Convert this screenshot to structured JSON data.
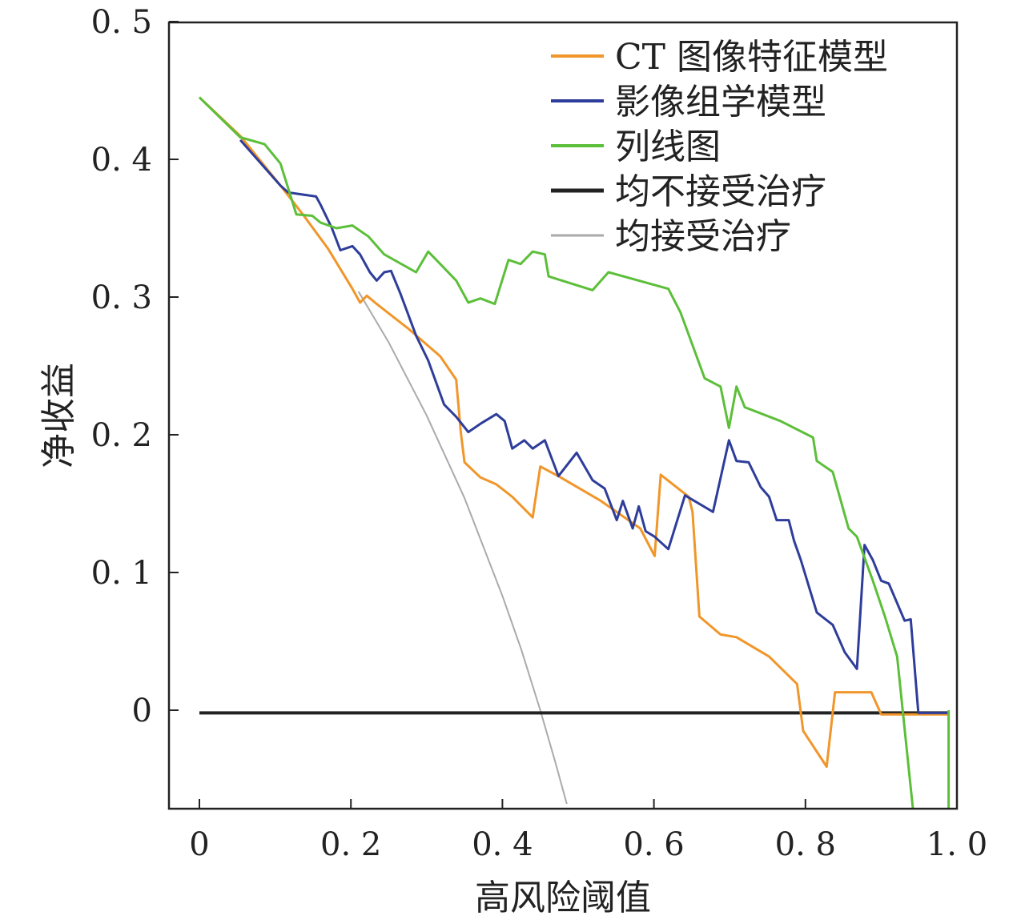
{
  "chart_data": {
    "type": "line",
    "title": "",
    "xlabel": "高风险阈值",
    "ylabel": "净收益",
    "xlim": [
      -0.04,
      1.0
    ],
    "ylim": [
      -0.0715,
      0.5
    ],
    "xticks": [
      0,
      0.2,
      0.4,
      0.6,
      0.8,
      1.0
    ],
    "xtick_labels": [
      "0",
      "0.2",
      "0.4",
      "0.6",
      "0.8",
      "1.0"
    ],
    "yticks": [
      0,
      0.1,
      0.2,
      0.3,
      0.4,
      0.5
    ],
    "ytick_labels": [
      "0",
      "0.1",
      "0.2",
      "0.3",
      "0.4",
      "0.5"
    ],
    "grid": false,
    "legend_position": "top-right",
    "series": [
      {
        "name": "CT 图像特征模型",
        "color": "#f0962a",
        "width": 3,
        "points": [
          [
            0,
            0.445
          ],
          [
            0.054,
            0.417
          ],
          [
            0.107,
            0.381
          ],
          [
            0.138,
            0.359
          ],
          [
            0.17,
            0.335
          ],
          [
            0.202,
            0.306
          ],
          [
            0.212,
            0.296
          ],
          [
            0.221,
            0.301
          ],
          [
            0.234,
            0.295
          ],
          [
            0.276,
            0.277
          ],
          [
            0.318,
            0.257
          ],
          [
            0.339,
            0.24
          ],
          [
            0.345,
            0.202
          ],
          [
            0.35,
            0.18
          ],
          [
            0.371,
            0.169
          ],
          [
            0.392,
            0.164
          ],
          [
            0.413,
            0.155
          ],
          [
            0.44,
            0.14
          ],
          [
            0.45,
            0.177
          ],
          [
            0.477,
            0.169
          ],
          [
            0.53,
            0.152
          ],
          [
            0.582,
            0.132
          ],
          [
            0.601,
            0.112
          ],
          [
            0.609,
            0.171
          ],
          [
            0.646,
            0.155
          ],
          [
            0.651,
            0.144
          ],
          [
            0.66,
            0.068
          ],
          [
            0.688,
            0.055
          ],
          [
            0.709,
            0.053
          ],
          [
            0.752,
            0.039
          ],
          [
            0.789,
            0.019
          ],
          [
            0.797,
            -0.015
          ],
          [
            0.828,
            -0.041
          ],
          [
            0.839,
            0.013
          ],
          [
            0.887,
            0.013
          ],
          [
            0.9,
            -0.003
          ],
          [
            0.989,
            -0.003
          ]
        ]
      },
      {
        "name": "影像组学模型",
        "color": "#2e3d9a",
        "width": 3,
        "points": [
          [
            0.054,
            0.414
          ],
          [
            0.107,
            0.381
          ],
          [
            0.117,
            0.376
          ],
          [
            0.154,
            0.373
          ],
          [
            0.16,
            0.367
          ],
          [
            0.175,
            0.35
          ],
          [
            0.186,
            0.334
          ],
          [
            0.202,
            0.337
          ],
          [
            0.212,
            0.331
          ],
          [
            0.225,
            0.318
          ],
          [
            0.234,
            0.312
          ],
          [
            0.244,
            0.318
          ],
          [
            0.253,
            0.319
          ],
          [
            0.265,
            0.303
          ],
          [
            0.286,
            0.272
          ],
          [
            0.302,
            0.254
          ],
          [
            0.323,
            0.222
          ],
          [
            0.339,
            0.213
          ],
          [
            0.355,
            0.202
          ],
          [
            0.371,
            0.208
          ],
          [
            0.392,
            0.215
          ],
          [
            0.403,
            0.21
          ],
          [
            0.413,
            0.19
          ],
          [
            0.429,
            0.196
          ],
          [
            0.44,
            0.19
          ],
          [
            0.456,
            0.196
          ],
          [
            0.474,
            0.17
          ],
          [
            0.498,
            0.187
          ],
          [
            0.519,
            0.167
          ],
          [
            0.535,
            0.161
          ],
          [
            0.551,
            0.138
          ],
          [
            0.559,
            0.152
          ],
          [
            0.572,
            0.132
          ],
          [
            0.58,
            0.148
          ],
          [
            0.589,
            0.13
          ],
          [
            0.601,
            0.126
          ],
          [
            0.619,
            0.117
          ],
          [
            0.641,
            0.156
          ],
          [
            0.678,
            0.144
          ],
          [
            0.699,
            0.196
          ],
          [
            0.709,
            0.181
          ],
          [
            0.725,
            0.18
          ],
          [
            0.741,
            0.162
          ],
          [
            0.752,
            0.155
          ],
          [
            0.762,
            0.138
          ],
          [
            0.778,
            0.138
          ],
          [
            0.785,
            0.123
          ],
          [
            0.794,
            0.109
          ],
          [
            0.815,
            0.071
          ],
          [
            0.836,
            0.062
          ],
          [
            0.852,
            0.042
          ],
          [
            0.868,
            0.03
          ],
          [
            0.878,
            0.12
          ],
          [
            0.889,
            0.109
          ],
          [
            0.9,
            0.094
          ],
          [
            0.91,
            0.092
          ],
          [
            0.931,
            0.065
          ],
          [
            0.939,
            0.066
          ],
          [
            0.949,
            -0.002
          ],
          [
            0.989,
            -0.002
          ]
        ]
      },
      {
        "name": "列线图",
        "color": "#5cbf3a",
        "width": 3,
        "points": [
          [
            0,
            0.445
          ],
          [
            0.054,
            0.416
          ],
          [
            0.086,
            0.411
          ],
          [
            0.107,
            0.397
          ],
          [
            0.128,
            0.36
          ],
          [
            0.149,
            0.359
          ],
          [
            0.16,
            0.354
          ],
          [
            0.181,
            0.35
          ],
          [
            0.202,
            0.352
          ],
          [
            0.223,
            0.344
          ],
          [
            0.244,
            0.331
          ],
          [
            0.286,
            0.318
          ],
          [
            0.302,
            0.333
          ],
          [
            0.318,
            0.324
          ],
          [
            0.339,
            0.312
          ],
          [
            0.355,
            0.296
          ],
          [
            0.371,
            0.299
          ],
          [
            0.39,
            0.295
          ],
          [
            0.408,
            0.327
          ],
          [
            0.424,
            0.324
          ],
          [
            0.44,
            0.333
          ],
          [
            0.456,
            0.331
          ],
          [
            0.461,
            0.315
          ],
          [
            0.519,
            0.305
          ],
          [
            0.54,
            0.318
          ],
          [
            0.619,
            0.306
          ],
          [
            0.635,
            0.289
          ],
          [
            0.667,
            0.241
          ],
          [
            0.688,
            0.235
          ],
          [
            0.699,
            0.205
          ],
          [
            0.709,
            0.235
          ],
          [
            0.72,
            0.22
          ],
          [
            0.767,
            0.21
          ],
          [
            0.81,
            0.198
          ],
          [
            0.815,
            0.181
          ],
          [
            0.836,
            0.173
          ],
          [
            0.857,
            0.132
          ],
          [
            0.868,
            0.126
          ],
          [
            0.889,
            0.094
          ],
          [
            0.905,
            0.068
          ],
          [
            0.921,
            0.039
          ],
          [
            0.942,
            -0.072
          ],
          null,
          [
            0.989,
            0
          ],
          [
            0.989,
            -0.072
          ]
        ]
      },
      {
        "name": "均不接受治疗",
        "color": "#222222",
        "width": 4,
        "points": [
          [
            0,
            -0.002
          ],
          [
            0.989,
            -0.002
          ]
        ]
      },
      {
        "name": "均接受治疗",
        "color": "#aaaaaa",
        "width": 2,
        "points": [
          [
            0.21,
            0.304
          ],
          [
            0.25,
            0.267
          ],
          [
            0.3,
            0.214
          ],
          [
            0.35,
            0.154
          ],
          [
            0.4,
            0.083
          ],
          [
            0.425,
            0.044
          ],
          [
            0.45,
            0
          ],
          [
            0.47,
            -0.038
          ],
          [
            0.485,
            -0.068
          ]
        ]
      }
    ]
  }
}
